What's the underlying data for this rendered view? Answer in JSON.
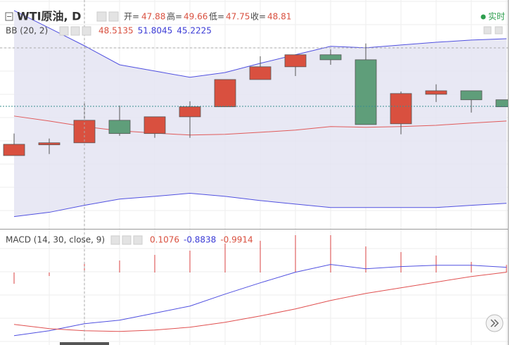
{
  "header": {
    "symbol": "WTI原油, D",
    "ohlc": [
      {
        "label": "开=",
        "value": 47.88
      },
      {
        "label": "高=",
        "value": 49.66
      },
      {
        "label": "低=",
        "value": 47.75
      },
      {
        "label": "收=",
        "value": 48.81
      }
    ],
    "status": "实时"
  },
  "chart_data": [
    {
      "type": "candlestick",
      "title": "BB (20, 2)",
      "readout": [
        {
          "value": 48.5135,
          "color": "#d9503f"
        },
        {
          "value": 51.8045,
          "color": "#3b3bd6"
        },
        {
          "value": 45.2225,
          "color": "#3b3bd6"
        }
      ],
      "ylim": [
        44.2,
        53.35
      ],
      "grid": true,
      "up_color": "#d9503f",
      "down_color": "#5f9e7a",
      "band_fill": "#e4e4f2",
      "open": [
        47.13,
        47.56,
        47.64,
        48.54,
        48.01,
        48.68,
        49.08,
        50.17,
        50.68,
        51.16,
        50.96,
        48.4,
        49.58,
        49.72,
        49.36
      ],
      "high": [
        48.01,
        47.81,
        49.24,
        49.13,
        48.68,
        49.3,
        50.17,
        51.1,
        51.16,
        51.38,
        51.61,
        49.69,
        49.98,
        49.72,
        49.36
      ],
      "low": [
        47.13,
        47.19,
        47.64,
        47.92,
        47.84,
        47.84,
        49.08,
        50.17,
        50.31,
        50.76,
        48.37,
        47.98,
        49.27,
        48.85,
        49.08
      ],
      "close": [
        47.58,
        47.64,
        48.54,
        48.01,
        48.68,
        49.08,
        50.17,
        50.68,
        51.16,
        50.96,
        48.37,
        49.61,
        49.72,
        49.36,
        49.08
      ],
      "series": [
        {
          "color": "#e05a5a",
          "values": [
            48.71,
            48.51,
            48.29,
            48.12,
            48.03,
            47.95,
            47.98,
            48.06,
            48.15,
            48.29,
            48.26,
            48.29,
            48.34,
            48.43,
            48.51
          ]
        },
        {
          "color": "#5050e0",
          "values": [
            52.93,
            52.23,
            51.52,
            50.76,
            50.51,
            50.26,
            50.45,
            50.82,
            51.16,
            51.5,
            51.44,
            51.55,
            51.66,
            51.75,
            51.8
          ]
        },
        {
          "color": "#5050e0",
          "values": [
            44.69,
            44.86,
            45.14,
            45.39,
            45.5,
            45.62,
            45.5,
            45.33,
            45.19,
            45.05,
            45.05,
            45.05,
            45.05,
            45.14,
            45.22
          ]
        }
      ]
    },
    {
      "type": "macd",
      "title": "MACD (14, 30, close, 9)",
      "readout": [
        {
          "value": 0.1076,
          "color": "#d9503f"
        },
        {
          "value": -0.8838,
          "color": "#3b3bd6"
        },
        {
          "value": -0.9914,
          "color": "#d9503f"
        }
      ],
      "ylim": [
        -2.58,
        -0.12
      ],
      "y2lim": [
        -1.03,
        0.57
      ],
      "series": [
        {
          "kind": "histogram",
          "axis": "y2",
          "color": "#d94040",
          "values": [
            -0.16,
            -0.05,
            0.12,
            0.17,
            0.25,
            0.31,
            0.41,
            0.45,
            0.53,
            0.53,
            0.37,
            0.29,
            0.24,
            0.15,
            0.1076
          ]
        },
        {
          "kind": "line",
          "color": "#5050e0",
          "values": [
            -2.376,
            -2.268,
            -2.115,
            -2.038,
            -1.884,
            -1.73,
            -1.468,
            -1.222,
            -0.991,
            -0.822,
            -0.915,
            -0.868,
            -0.838,
            -0.838,
            -0.8838
          ]
        },
        {
          "kind": "line",
          "color": "#e05050",
          "values": [
            -2.13,
            -2.222,
            -2.268,
            -2.284,
            -2.253,
            -2.192,
            -2.084,
            -1.946,
            -1.792,
            -1.607,
            -1.453,
            -1.33,
            -1.207,
            -1.084,
            -0.9914
          ]
        }
      ]
    }
  ]
}
